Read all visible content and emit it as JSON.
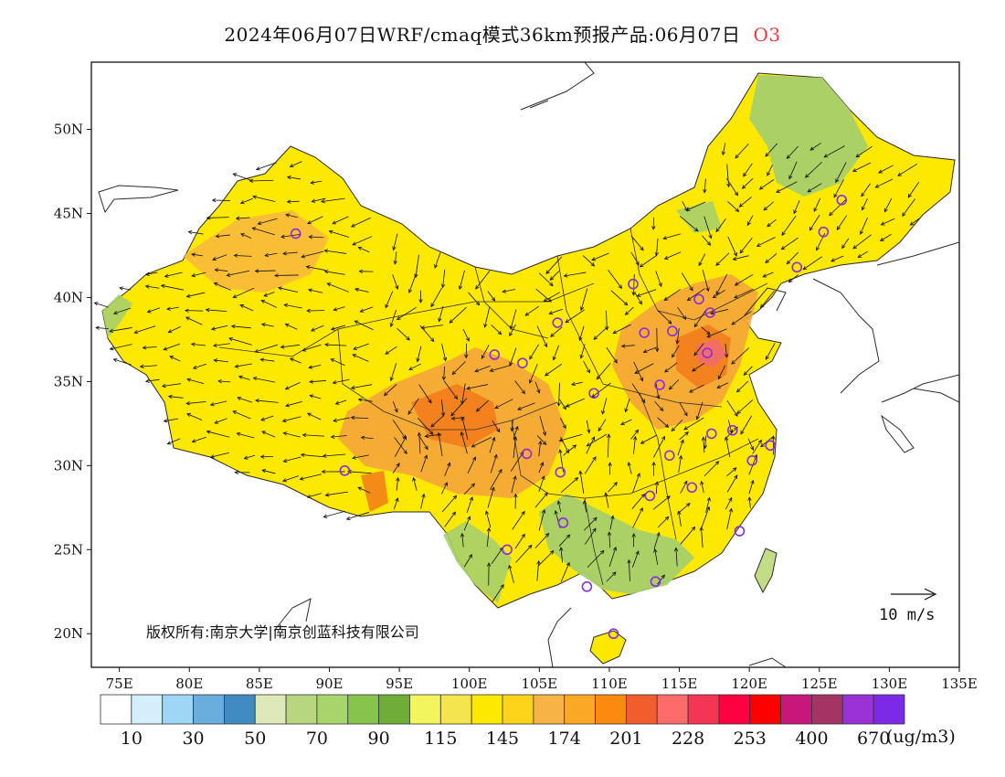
{
  "title": {
    "main": "2024年06月07日WRF/cmaq模式36km预报产品:06月07日",
    "species": "O3"
  },
  "map": {
    "lon_range": [
      73,
      135
    ],
    "lat_range": [
      18,
      54
    ],
    "lon_ticks": [
      "75E",
      "80E",
      "85E",
      "90E",
      "95E",
      "100E",
      "105E",
      "110E",
      "115E",
      "120E",
      "125E",
      "130E",
      "135E"
    ],
    "lat_ticks": [
      "20N",
      "25N",
      "30N",
      "35N",
      "40N",
      "45N",
      "50N"
    ],
    "copyright": "版权所有:南京大学|南京创蓝科技有限公司",
    "wind_reference": "10 m/s",
    "field_colors": {
      "background": "#ffffff",
      "dominant": "#ffe500",
      "high": "#f5a43a",
      "very_high": "#f27a1b",
      "peak": "#f26b6b",
      "green": "#a6cf6a"
    },
    "site_color": "#8b2be2"
  },
  "colorbar": {
    "colors": [
      "#ffffff",
      "#d4effb",
      "#9ed7f5",
      "#6aaedd",
      "#3f8bc2",
      "#dfe8b8",
      "#b8d57f",
      "#a8d56a",
      "#86c44b",
      "#6fad38",
      "#f2f55c",
      "#f4e44e",
      "#fde800",
      "#fdd41a",
      "#f7b344",
      "#f9a926",
      "#fb8a0e",
      "#f15d2d",
      "#fd6b6b",
      "#f43654",
      "#ff0040",
      "#ff0000",
      "#c8177a",
      "#a43463",
      "#9a32d6",
      "#7d2ae8"
    ],
    "labels": [
      "10",
      "30",
      "50",
      "70",
      "90",
      "115",
      "145",
      "174",
      "201",
      "228",
      "253",
      "400",
      "670"
    ],
    "unit": "(ug/m3)"
  }
}
